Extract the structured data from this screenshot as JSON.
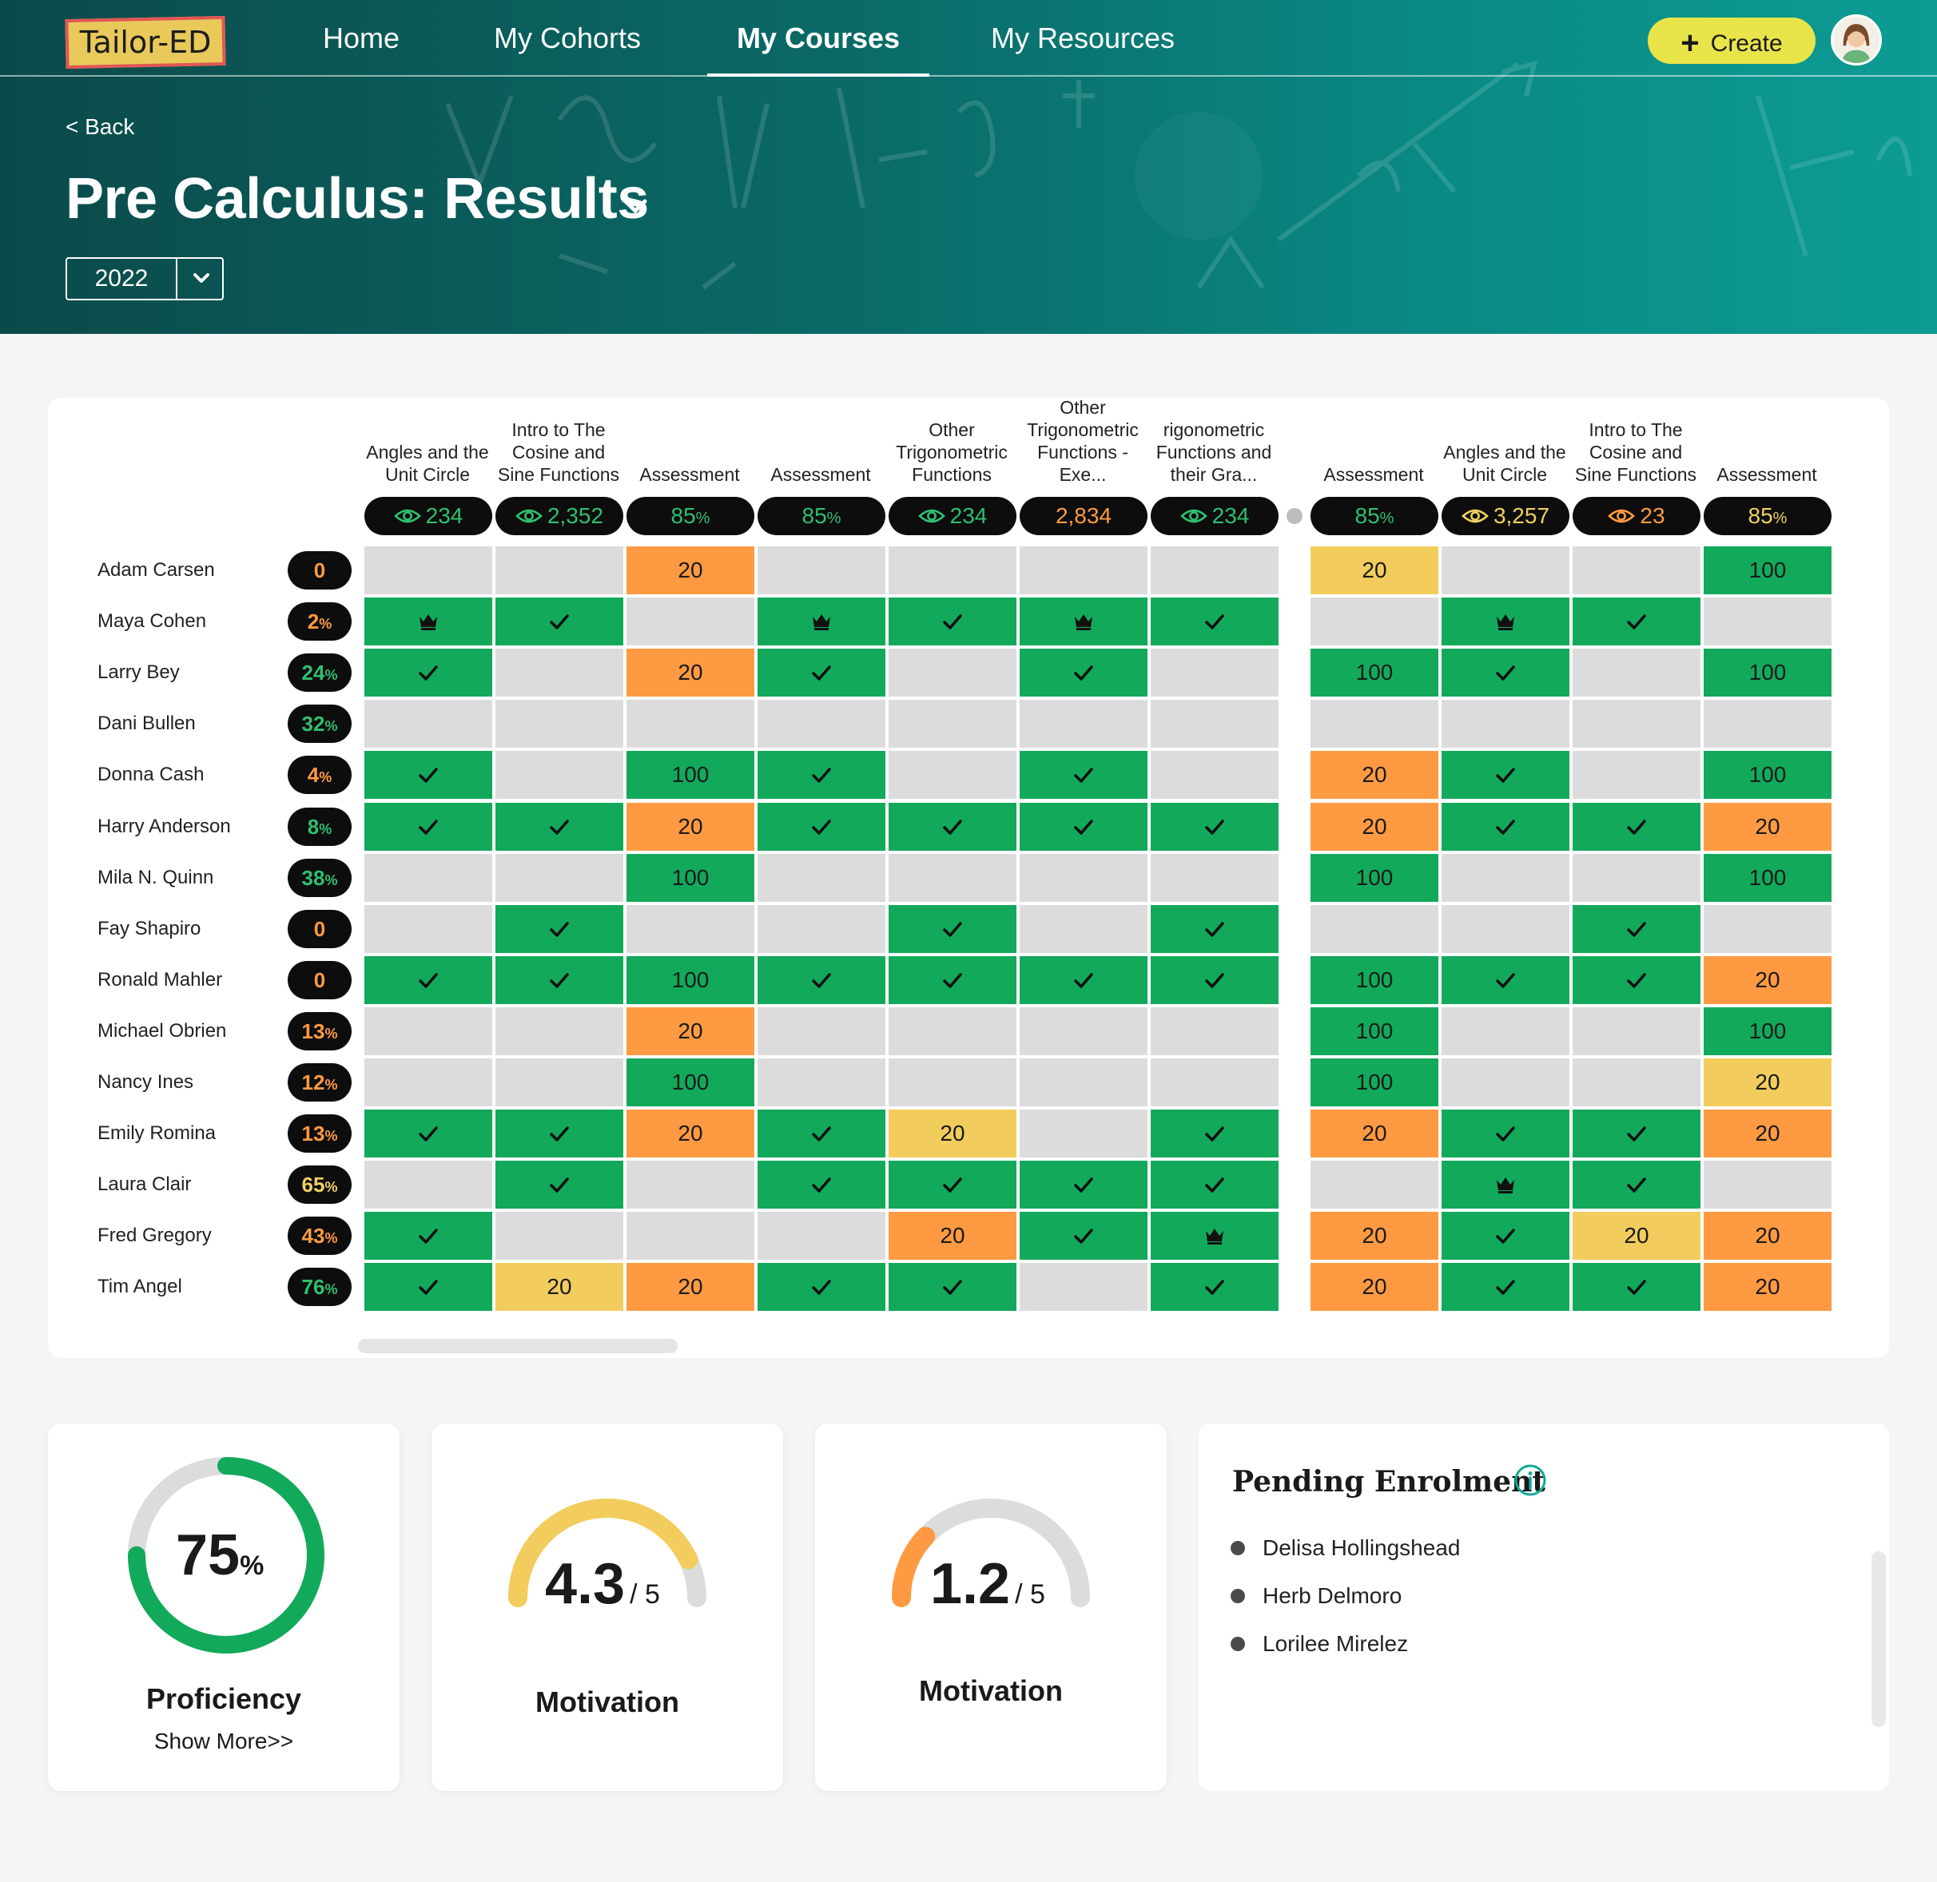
{
  "nav": {
    "logo": "Tailor-ED",
    "items": [
      {
        "label": "Home"
      },
      {
        "label": "My Cohorts"
      },
      {
        "label": "My Courses"
      },
      {
        "label": "My Resources"
      }
    ],
    "create_label": "Create"
  },
  "hero": {
    "back_label": "< Back",
    "title": "Pre Calculus: Results",
    "year": "2022"
  },
  "colors": {
    "green": "#12a95b",
    "orange": "#ff9a42",
    "yellow": "#f2cd5d",
    "empty": "#dcdcdc",
    "accent": "#e9e44a"
  },
  "table": {
    "columns": [
      {
        "title": [
          "Angles and the",
          "Unit Circle"
        ],
        "value": "234",
        "color": "green",
        "icon": "eye-icon",
        "pct": false
      },
      {
        "title": [
          "Intro to The",
          "Cosine and",
          "Sine Functions"
        ],
        "value": "2,352",
        "color": "green",
        "icon": "eye-icon",
        "pct": false
      },
      {
        "title": [
          "Assessment"
        ],
        "value": "85",
        "color": "green",
        "icon": "",
        "pct": true
      },
      {
        "title": [
          "Assessment"
        ],
        "value": "85",
        "color": "green",
        "icon": "",
        "pct": true
      },
      {
        "title": [
          "Other",
          "Trigonometric",
          "Functions"
        ],
        "value": "234",
        "color": "green",
        "icon": "eye-icon",
        "pct": false
      },
      {
        "title": [
          "Other",
          "Trigonometric",
          "Functions -",
          "Exe..."
        ],
        "value": "2,834",
        "color": "orange",
        "icon": "",
        "pct": false
      },
      {
        "title": [
          "rigonometric",
          "Functions and",
          "their Gra..."
        ],
        "value": "234",
        "color": "green",
        "icon": "eye-icon",
        "pct": false
      },
      {
        "title": [
          "Assessment"
        ],
        "value": "85",
        "color": "green",
        "icon": "",
        "pct": true
      },
      {
        "title": [
          "Angles and the",
          "Unit Circle"
        ],
        "value": "3,257",
        "color": "yellow",
        "icon": "eye-icon",
        "pct": false
      },
      {
        "title": [
          "Intro to The",
          "Cosine and",
          "Sine Functions"
        ],
        "value": "23",
        "color": "orange",
        "icon": "eye-icon",
        "pct": false
      },
      {
        "title": [
          "Assessment"
        ],
        "value": "85",
        "color": "yellow",
        "icon": "",
        "pct": true
      }
    ],
    "students": [
      {
        "name": "Adam Carsen",
        "score": "0",
        "pct": false,
        "color": "orange",
        "cells": [
          "e",
          "e",
          "o:20",
          "e",
          "e",
          "e",
          "e",
          "y:20",
          "e",
          "e",
          "g:100"
        ]
      },
      {
        "name": "Maya Cohen",
        "score": "2",
        "pct": true,
        "color": "orange",
        "cells": [
          "c",
          "d",
          "e",
          "c",
          "d",
          "c",
          "d",
          "e",
          "c",
          "d",
          "e"
        ]
      },
      {
        "name": "Larry Bey",
        "score": "24",
        "pct": true,
        "color": "green",
        "cells": [
          "d",
          "e",
          "o:20",
          "d",
          "e",
          "d",
          "e",
          "g:100",
          "d",
          "e",
          "g:100"
        ]
      },
      {
        "name": "Dani Bullen",
        "score": "32",
        "pct": true,
        "color": "green",
        "cells": [
          "e",
          "e",
          "e",
          "e",
          "e",
          "e",
          "e",
          "e",
          "e",
          "e",
          "e"
        ]
      },
      {
        "name": "Donna Cash",
        "score": "4",
        "pct": true,
        "color": "orange",
        "cells": [
          "d",
          "e",
          "g:100",
          "d",
          "e",
          "d",
          "e",
          "o:20",
          "d",
          "e",
          "g:100"
        ]
      },
      {
        "name": "Harry Anderson",
        "score": "8",
        "pct": true,
        "color": "green",
        "cells": [
          "d",
          "d",
          "o:20",
          "d",
          "d",
          "d",
          "d",
          "o:20",
          "d",
          "d",
          "o:20"
        ]
      },
      {
        "name": "Mila N. Quinn",
        "score": "38",
        "pct": true,
        "color": "green",
        "cells": [
          "e",
          "e",
          "g:100",
          "e",
          "e",
          "e",
          "e",
          "g:100",
          "e",
          "e",
          "g:100"
        ]
      },
      {
        "name": "Fay Shapiro",
        "score": "0",
        "pct": false,
        "color": "orange",
        "cells": [
          "e",
          "d",
          "e",
          "e",
          "d",
          "e",
          "d",
          "e",
          "e",
          "d",
          "e"
        ]
      },
      {
        "name": "Ronald Mahler",
        "score": "0",
        "pct": false,
        "color": "orange",
        "cells": [
          "d",
          "d",
          "g:100",
          "d",
          "d",
          "d",
          "d",
          "g:100",
          "d",
          "d",
          "o:20"
        ]
      },
      {
        "name": "Michael Obrien",
        "score": "13",
        "pct": true,
        "color": "orange",
        "cells": [
          "e",
          "e",
          "o:20",
          "e",
          "e",
          "e",
          "e",
          "g:100",
          "e",
          "e",
          "g:100"
        ]
      },
      {
        "name": "Nancy Ines",
        "score": "12",
        "pct": true,
        "color": "orange",
        "cells": [
          "e",
          "e",
          "g:100",
          "e",
          "e",
          "e",
          "e",
          "g:100",
          "e",
          "e",
          "y:20"
        ]
      },
      {
        "name": "Emily Romina",
        "score": "13",
        "pct": true,
        "color": "orange",
        "cells": [
          "d",
          "d",
          "o:20",
          "d",
          "y:20",
          "e",
          "d",
          "o:20",
          "d",
          "d",
          "o:20"
        ]
      },
      {
        "name": "Laura Clair",
        "score": "65",
        "pct": true,
        "color": "yellow",
        "cells": [
          "e",
          "d",
          "e",
          "d",
          "d",
          "d",
          "d",
          "e",
          "c",
          "d",
          "e"
        ]
      },
      {
        "name": "Fred Gregory",
        "score": "43",
        "pct": true,
        "color": "orange",
        "cells": [
          "d",
          "e",
          "e",
          "e",
          "o:20",
          "d",
          "c",
          "o:20",
          "d",
          "y:20",
          "o:20"
        ]
      },
      {
        "name": "Tim Angel",
        "score": "76",
        "pct": true,
        "color": "green",
        "cells": [
          "d",
          "y:20",
          "o:20",
          "d",
          "d",
          "e",
          "d",
          "o:20",
          "d",
          "d",
          "o:20"
        ]
      }
    ]
  },
  "stats": {
    "proficiency": {
      "value": "75",
      "unit": "%",
      "fraction": 0.75,
      "label": "Proficiency",
      "more": "Show More>>"
    },
    "motivation_1": {
      "value": "4.3",
      "max": "/ 5",
      "fraction": 0.86,
      "label": "Motivation"
    },
    "motivation_2": {
      "value": "1.2",
      "max": "/ 5",
      "fraction": 0.24,
      "label": "Motivation"
    }
  },
  "pending": {
    "title": "Pending Enrolment",
    "items": [
      "Delisa Hollingshead",
      "Herb Delmoro",
      "Lorilee Mirelez"
    ]
  }
}
